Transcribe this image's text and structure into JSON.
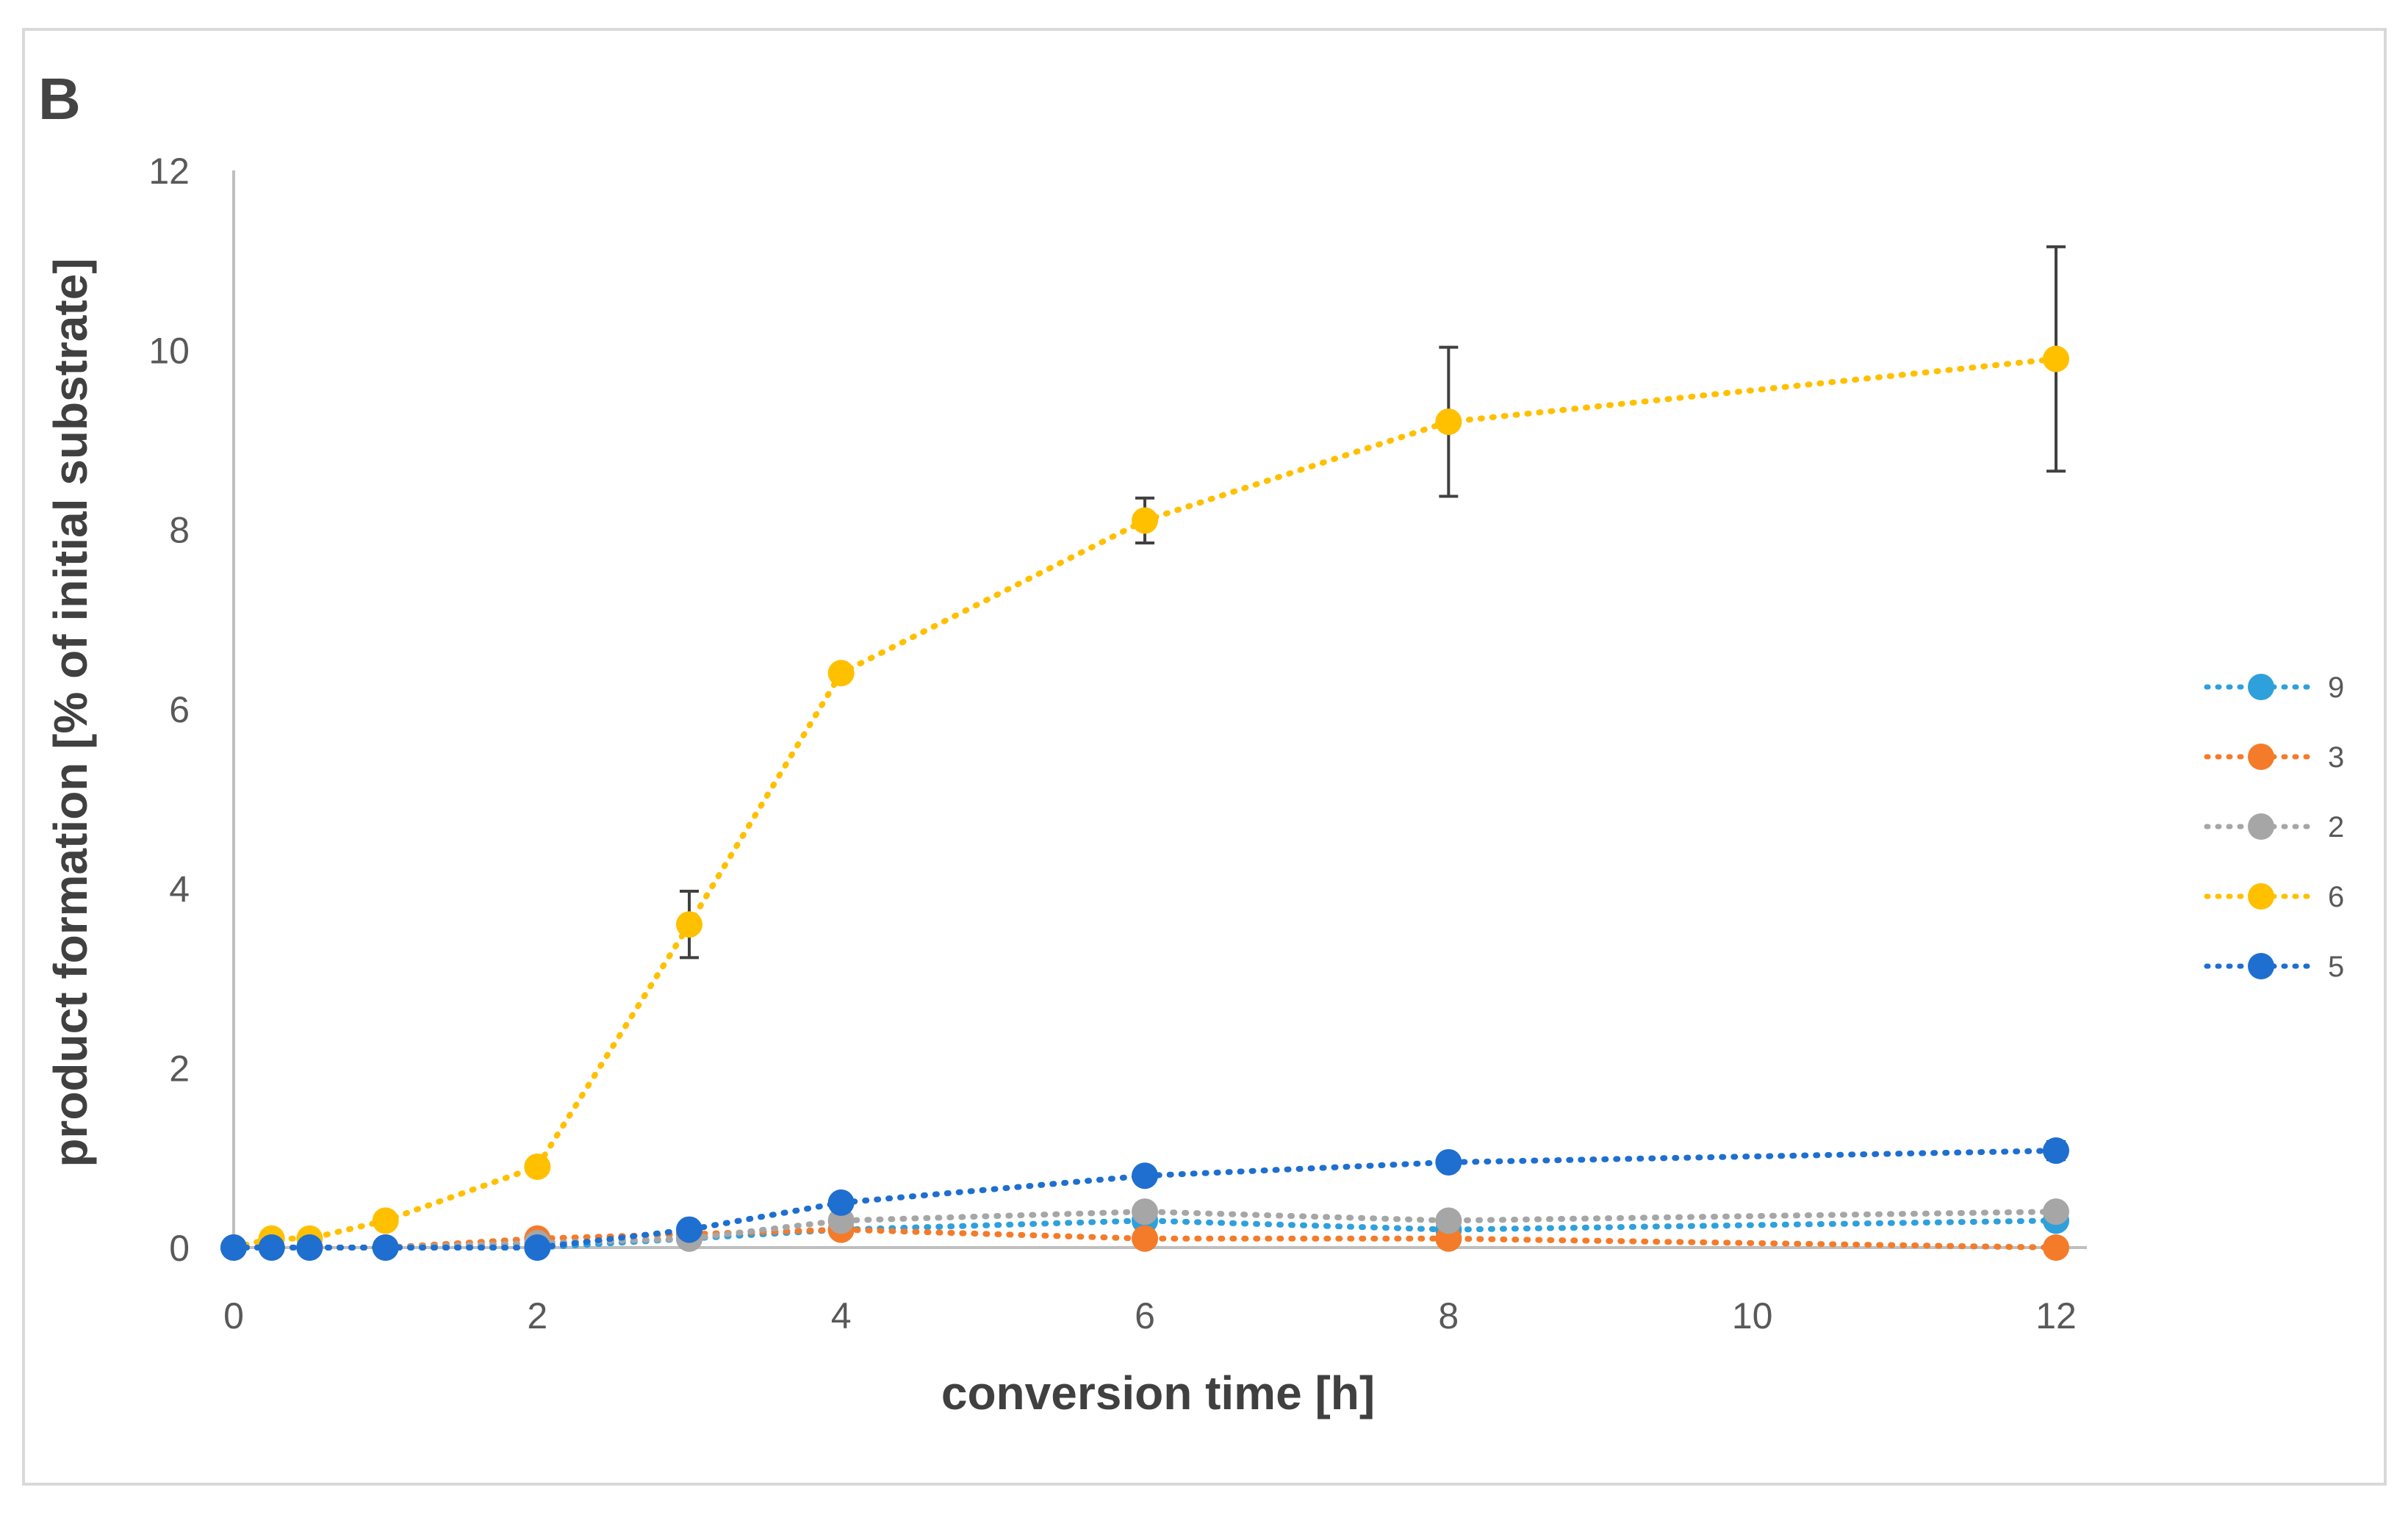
{
  "chart_data": {
    "type": "line",
    "panel_label": "B",
    "title": "",
    "xlabel": "conversion time [h]",
    "ylabel": "product formation [% of initial substrate]",
    "xlim": [
      0,
      12
    ],
    "ylim": [
      0,
      12
    ],
    "x_ticks": [
      0,
      2,
      4,
      6,
      8,
      10,
      12
    ],
    "x_tick_labels": [
      "0",
      "2",
      "4",
      "6",
      "8",
      "10",
      "12"
    ],
    "y_ticks": [
      0,
      2,
      4,
      6,
      8,
      10,
      12
    ],
    "y_tick_labels": [
      "0",
      "2",
      "4",
      "6",
      "8",
      "10",
      "12"
    ],
    "grid": false,
    "legend_position": "right",
    "line_style": "dotted",
    "x": [
      0,
      0.25,
      0.5,
      1,
      2,
      3,
      4,
      6,
      8,
      12
    ],
    "series": [
      {
        "name": "9",
        "color": "#2ea0dc",
        "values": [
          0,
          0,
          0,
          0,
          0,
          0.1,
          0.2,
          0.3,
          0.2,
          0.3
        ],
        "errors": [
          0,
          0,
          0,
          0,
          0,
          0,
          0,
          0,
          0,
          0
        ]
      },
      {
        "name": "3",
        "color": "#f47b2a",
        "values": [
          0,
          0,
          0,
          0,
          0.1,
          0.15,
          0.2,
          0.1,
          0.1,
          0
        ],
        "errors": [
          0,
          0,
          0,
          0,
          0,
          0,
          0,
          0,
          0,
          0
        ]
      },
      {
        "name": "2",
        "color": "#a6a6a6",
        "values": [
          0,
          0,
          0,
          0,
          0.05,
          0.1,
          0.3,
          0.4,
          0.3,
          0.4
        ],
        "errors": [
          0,
          0,
          0,
          0,
          0,
          0,
          0,
          0,
          0,
          0
        ]
      },
      {
        "name": "6",
        "color": "#ffc000",
        "values": [
          0,
          0.1,
          0.1,
          0.3,
          0.9,
          3.6,
          6.4,
          8.1,
          9.2,
          9.9
        ],
        "errors": [
          0,
          0,
          0,
          0,
          0,
          0.37,
          0,
          0.25,
          0.83,
          1.25
        ]
      },
      {
        "name": "5",
        "color": "#1e6fd0",
        "values": [
          0,
          0,
          0,
          0,
          0,
          0.2,
          0.5,
          0.8,
          0.95,
          1.08
        ],
        "errors": [
          0,
          0,
          0,
          0,
          0,
          0,
          0,
          0,
          0,
          0.1
        ]
      }
    ],
    "draw_order": [
      "6",
      "9",
      "3",
      "2",
      "5"
    ],
    "error_bar_color": "#404040"
  }
}
